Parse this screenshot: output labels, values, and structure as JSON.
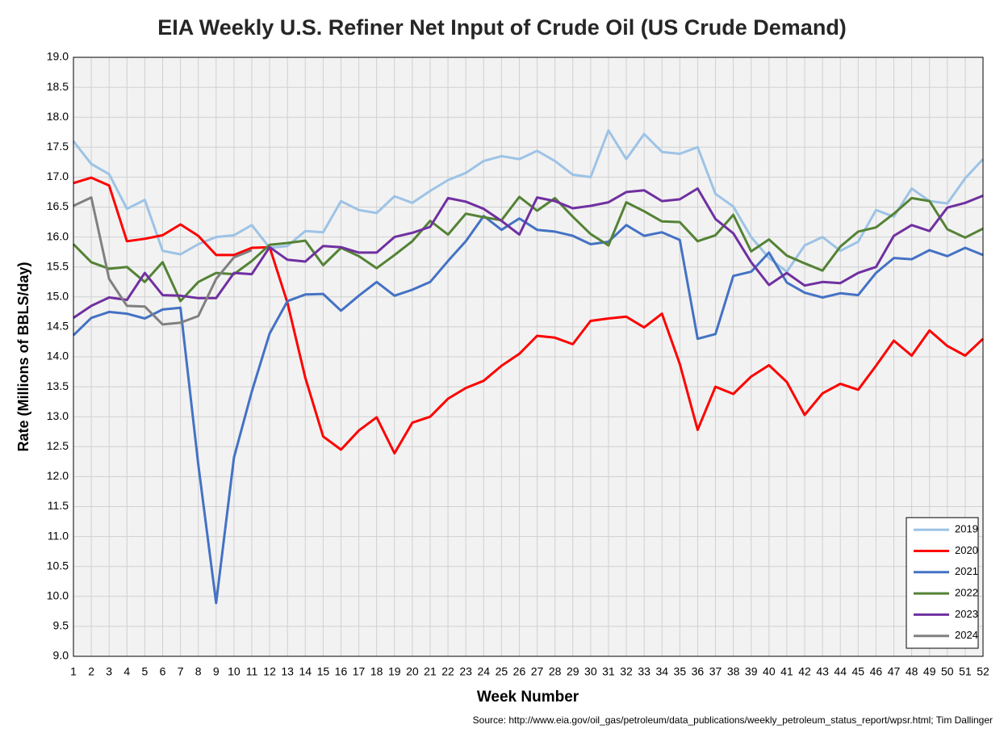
{
  "chart_data": {
    "type": "line",
    "title": "EIA Weekly U.S. Refiner Net Input of Crude Oil (US Crude Demand)",
    "x_label": "Week Number",
    "y_label": "Rate (Millions of BBLS/day)",
    "source": "Source: http://www.eia.gov/oil_gas/petroleum/data_publications/weekly_petroleum_status_report/wpsr.html; Tim Dallinger",
    "x": [
      1,
      2,
      3,
      4,
      5,
      6,
      7,
      8,
      9,
      10,
      11,
      12,
      13,
      14,
      15,
      16,
      17,
      18,
      19,
      20,
      21,
      22,
      23,
      24,
      25,
      26,
      27,
      28,
      29,
      30,
      31,
      32,
      33,
      34,
      35,
      36,
      37,
      38,
      39,
      40,
      41,
      42,
      43,
      44,
      45,
      46,
      47,
      48,
      49,
      50,
      51,
      52
    ],
    "xlim": [
      1,
      52
    ],
    "xticks": [
      1,
      2,
      3,
      4,
      5,
      6,
      7,
      8,
      9,
      10,
      11,
      12,
      13,
      14,
      15,
      16,
      17,
      18,
      19,
      20,
      21,
      22,
      23,
      24,
      25,
      26,
      27,
      28,
      29,
      30,
      31,
      32,
      33,
      34,
      35,
      36,
      37,
      38,
      39,
      40,
      41,
      42,
      43,
      44,
      45,
      46,
      47,
      48,
      49,
      50,
      51,
      52
    ],
    "ylim": [
      9,
      19
    ],
    "yticks": [
      {
        "value": 9,
        "label": "9.0"
      },
      9.5,
      {
        "value": 10,
        "label": "10.0"
      },
      10.5,
      {
        "value": 11,
        "label": "11.0"
      },
      11.5,
      {
        "value": 12,
        "label": "12.0"
      },
      12.5,
      {
        "value": 13,
        "label": "13.0"
      },
      13.5,
      {
        "value": 14,
        "label": "14.0"
      },
      14.5,
      {
        "value": 15,
        "label": "15.0"
      },
      15.5,
      {
        "value": 16,
        "label": "16.0"
      },
      16.5,
      {
        "value": 17,
        "label": "17.0"
      },
      17.5,
      {
        "value": 18,
        "label": "18.0"
      },
      18.5,
      {
        "value": 19,
        "label": "19.0"
      }
    ],
    "grid": true,
    "legend": "lower right",
    "series": [
      {
        "name": "2019",
        "color": "#9dc3e6",
        "values": [
          17.6,
          17.22,
          17.05,
          16.47,
          16.62,
          15.77,
          15.71,
          15.88,
          16.0,
          16.03,
          16.2,
          15.82,
          15.85,
          16.1,
          16.08,
          16.6,
          16.45,
          16.4,
          16.68,
          16.57,
          16.77,
          16.95,
          17.07,
          17.27,
          17.35,
          17.3,
          17.44,
          17.27,
          17.04,
          17.0,
          17.78,
          17.3,
          17.72,
          17.42,
          17.39,
          17.5,
          16.72,
          16.51,
          16.0,
          15.65,
          15.42,
          15.86,
          16.0,
          15.77,
          15.92,
          16.45,
          16.34,
          16.81,
          16.6,
          16.56,
          16.98,
          17.3
        ]
      },
      {
        "name": "2020",
        "color": "#ff0000",
        "values": [
          16.9,
          16.99,
          16.86,
          15.93,
          15.97,
          16.03,
          16.21,
          16.02,
          15.7,
          15.7,
          15.82,
          15.83,
          14.9,
          13.65,
          12.67,
          12.45,
          12.77,
          12.99,
          12.39,
          12.9,
          13.0,
          13.3,
          13.48,
          13.6,
          13.85,
          14.05,
          14.35,
          14.32,
          14.21,
          14.6,
          14.64,
          14.67,
          14.49,
          14.72,
          13.88,
          12.78,
          13.5,
          13.38,
          13.67,
          13.86,
          13.58,
          13.03,
          13.39,
          13.55,
          13.45,
          13.85,
          14.27,
          14.02,
          14.44,
          14.18,
          14.02,
          14.3
        ]
      },
      {
        "name": "2021",
        "color": "#4472c4",
        "values": [
          14.36,
          14.65,
          14.75,
          14.72,
          14.64,
          14.79,
          14.82,
          12.2,
          9.89,
          12.32,
          13.42,
          14.39,
          14.93,
          15.04,
          15.05,
          14.77,
          15.02,
          15.25,
          15.02,
          15.12,
          15.25,
          15.6,
          15.93,
          16.35,
          16.12,
          16.31,
          16.12,
          16.09,
          16.02,
          15.88,
          15.92,
          16.2,
          16.02,
          16.08,
          15.95,
          14.3,
          14.38,
          15.35,
          15.42,
          15.74,
          15.24,
          15.07,
          14.99,
          15.06,
          15.03,
          15.4,
          15.65,
          15.63,
          15.78,
          15.68,
          15.82,
          15.7
        ]
      },
      {
        "name": "2022",
        "color": "#548235",
        "values": [
          15.88,
          15.58,
          15.47,
          15.5,
          15.25,
          15.58,
          14.93,
          15.25,
          15.4,
          15.38,
          15.6,
          15.87,
          15.9,
          15.94,
          15.53,
          15.82,
          15.68,
          15.48,
          15.7,
          15.93,
          16.27,
          16.04,
          16.39,
          16.33,
          16.28,
          16.67,
          16.44,
          16.65,
          16.34,
          16.05,
          15.86,
          16.58,
          16.43,
          16.26,
          16.25,
          15.93,
          16.03,
          16.37,
          15.76,
          15.96,
          15.69,
          15.56,
          15.44,
          15.84,
          16.09,
          16.16,
          16.39,
          16.65,
          16.6,
          16.13,
          15.99,
          16.14
        ]
      },
      {
        "name": "2023",
        "color": "#7030a0",
        "values": [
          14.65,
          14.85,
          14.99,
          14.95,
          15.4,
          15.03,
          15.02,
          14.98,
          14.98,
          15.4,
          15.38,
          15.83,
          15.62,
          15.59,
          15.85,
          15.83,
          15.74,
          15.74,
          16.0,
          16.07,
          16.17,
          16.65,
          16.59,
          16.47,
          16.27,
          16.04,
          16.66,
          16.6,
          16.48,
          16.52,
          16.58,
          16.75,
          16.78,
          16.6,
          16.63,
          16.81,
          16.3,
          16.06,
          15.58,
          15.2,
          15.4,
          15.19,
          15.25,
          15.23,
          15.4,
          15.5,
          16.02,
          16.2,
          16.1,
          16.49,
          16.57,
          16.69
        ]
      },
      {
        "name": "2024",
        "color": "#808080",
        "values": [
          16.52,
          16.66,
          15.3,
          14.85,
          14.84,
          14.54,
          14.57,
          14.68,
          15.3,
          15.66,
          15.78,
          null,
          null,
          null,
          null,
          null,
          null,
          null,
          null,
          null,
          null,
          null,
          null,
          null,
          null,
          null,
          null,
          null,
          null,
          null,
          null,
          null,
          null,
          null,
          null,
          null,
          null,
          null,
          null,
          null,
          null,
          null,
          null,
          null,
          null,
          null,
          null,
          null,
          null,
          null,
          null,
          null
        ]
      }
    ]
  }
}
